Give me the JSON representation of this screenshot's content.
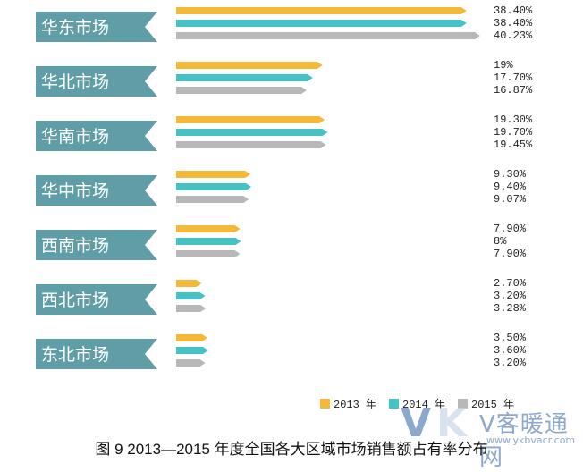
{
  "chart_data": {
    "type": "bar",
    "orientation": "horizontal",
    "categories": [
      "华东市场",
      "华北市场",
      "华南市场",
      "华中市场",
      "西南市场",
      "西北市场",
      "东北市场"
    ],
    "series": [
      {
        "name": "2013 年",
        "color": "#f5b93a",
        "values": [
          38.4,
          19,
          19.3,
          9.3,
          7.9,
          2.7,
          3.5
        ],
        "labels": [
          "38.40%",
          "19%",
          "19.30%",
          "9.30%",
          "7.90%",
          "2.70%",
          "3.50%"
        ]
      },
      {
        "name": "2014 年",
        "color": "#44c2c4",
        "values": [
          38.4,
          17.7,
          19.7,
          9.4,
          8,
          3.2,
          3.6
        ],
        "labels": [
          "38.40%",
          "17.70%",
          "19.70%",
          "9.40%",
          "8%",
          "3.20%",
          "3.60%"
        ]
      },
      {
        "name": "2015 年",
        "color": "#b8b8b8",
        "values": [
          40.23,
          16.87,
          19.45,
          9.07,
          7.9,
          3.28,
          3.2
        ],
        "labels": [
          "40.23%",
          "16.87%",
          "19.45%",
          "9.07%",
          "7.90%",
          "3.28%",
          "3.20%"
        ]
      }
    ],
    "category_label_color": "#5f9ea6",
    "legend_position": "bottom-right"
  },
  "caption": "图 9   2013—2015 年度全国各大区域市场销售额占有率分布",
  "watermark": {
    "letter_v": "V",
    "letter_k": "K",
    "text": "V客暖通网",
    "url": "www.ykbvacr.com"
  }
}
